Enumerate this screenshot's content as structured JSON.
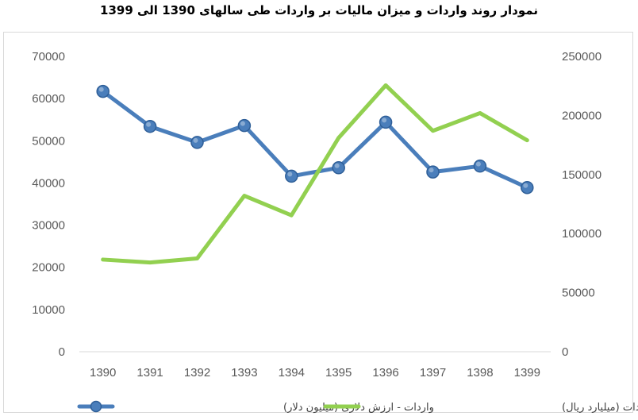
{
  "chart_data": {
    "type": "line",
    "title": "نمودار روند واردات و میزان مالیات بر واردات طی سالهای 1390 الی 1399",
    "categories": [
      "1390",
      "1391",
      "1392",
      "1393",
      "1394",
      "1395",
      "1396",
      "1397",
      "1398",
      "1399"
    ],
    "y_left": {
      "min": 0,
      "max": 70000,
      "step": 10000,
      "ticks": [
        "0",
        "10000",
        "20000",
        "30000",
        "40000",
        "50000",
        "60000",
        "70000"
      ]
    },
    "y_right": {
      "min": 0,
      "max": 250000,
      "step": 50000,
      "ticks": [
        "0",
        "50000",
        "100000",
        "150000",
        "200000",
        "250000"
      ]
    },
    "grid": false,
    "legend_position": "bottom",
    "series": [
      {
        "name": "واردات - ارزش دلاری (میلیون دلار)",
        "axis": "left",
        "color": "#4a7ebb",
        "marker": "circle",
        "values": [
          61700,
          53400,
          49600,
          53600,
          41600,
          43600,
          54400,
          42600,
          44000,
          38900
        ]
      },
      {
        "name": "عملکرد رقم مالیات بر واردات (میلیارد ریال)",
        "axis": "right",
        "color": "#92d050",
        "marker": "none",
        "values": [
          78000,
          75500,
          79000,
          132000,
          115500,
          181000,
          225500,
          187000,
          202000,
          179000
        ]
      }
    ]
  }
}
